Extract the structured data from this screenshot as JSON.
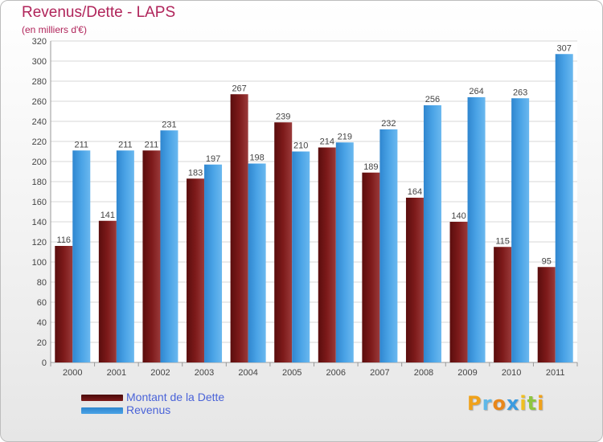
{
  "colors": {
    "debt": "#7d1a1a",
    "revenue": "#4aa3e6",
    "title": "#b0245a",
    "legend_text": "#4a63d8",
    "grid": "#d7d7d7",
    "label": "#444444"
  },
  "chart_data": {
    "type": "bar",
    "title": "Revenus/Dette - LAPS",
    "subtitle": "(en milliers d'€)",
    "categories": [
      "2000",
      "2001",
      "2002",
      "2003",
      "2004",
      "2005",
      "2006",
      "2007",
      "2008",
      "2009",
      "2010",
      "2011"
    ],
    "series": [
      {
        "name": "Montant de la Dette",
        "values": [
          116,
          141,
          211,
          183,
          267,
          239,
          214,
          189,
          164,
          140,
          115,
          95
        ]
      },
      {
        "name": "Revenus",
        "values": [
          211,
          211,
          231,
          197,
          198,
          210,
          219,
          232,
          256,
          264,
          263,
          307
        ]
      }
    ],
    "ylim": [
      0,
      320
    ],
    "yticks": [
      0,
      20,
      40,
      60,
      80,
      100,
      120,
      140,
      160,
      180,
      200,
      220,
      240,
      260,
      280,
      300,
      320
    ],
    "grid": true,
    "legend": "bottom-left",
    "data_labels": true
  },
  "brand": {
    "letters": [
      "P",
      "r",
      "o",
      "x",
      "i",
      "t",
      "i"
    ],
    "colors": [
      "#f0a21a",
      "#5fb8e8",
      "#e8871a",
      "#3b9be0",
      "#f0c020",
      "#8ec63f",
      "#f0a21a"
    ]
  }
}
